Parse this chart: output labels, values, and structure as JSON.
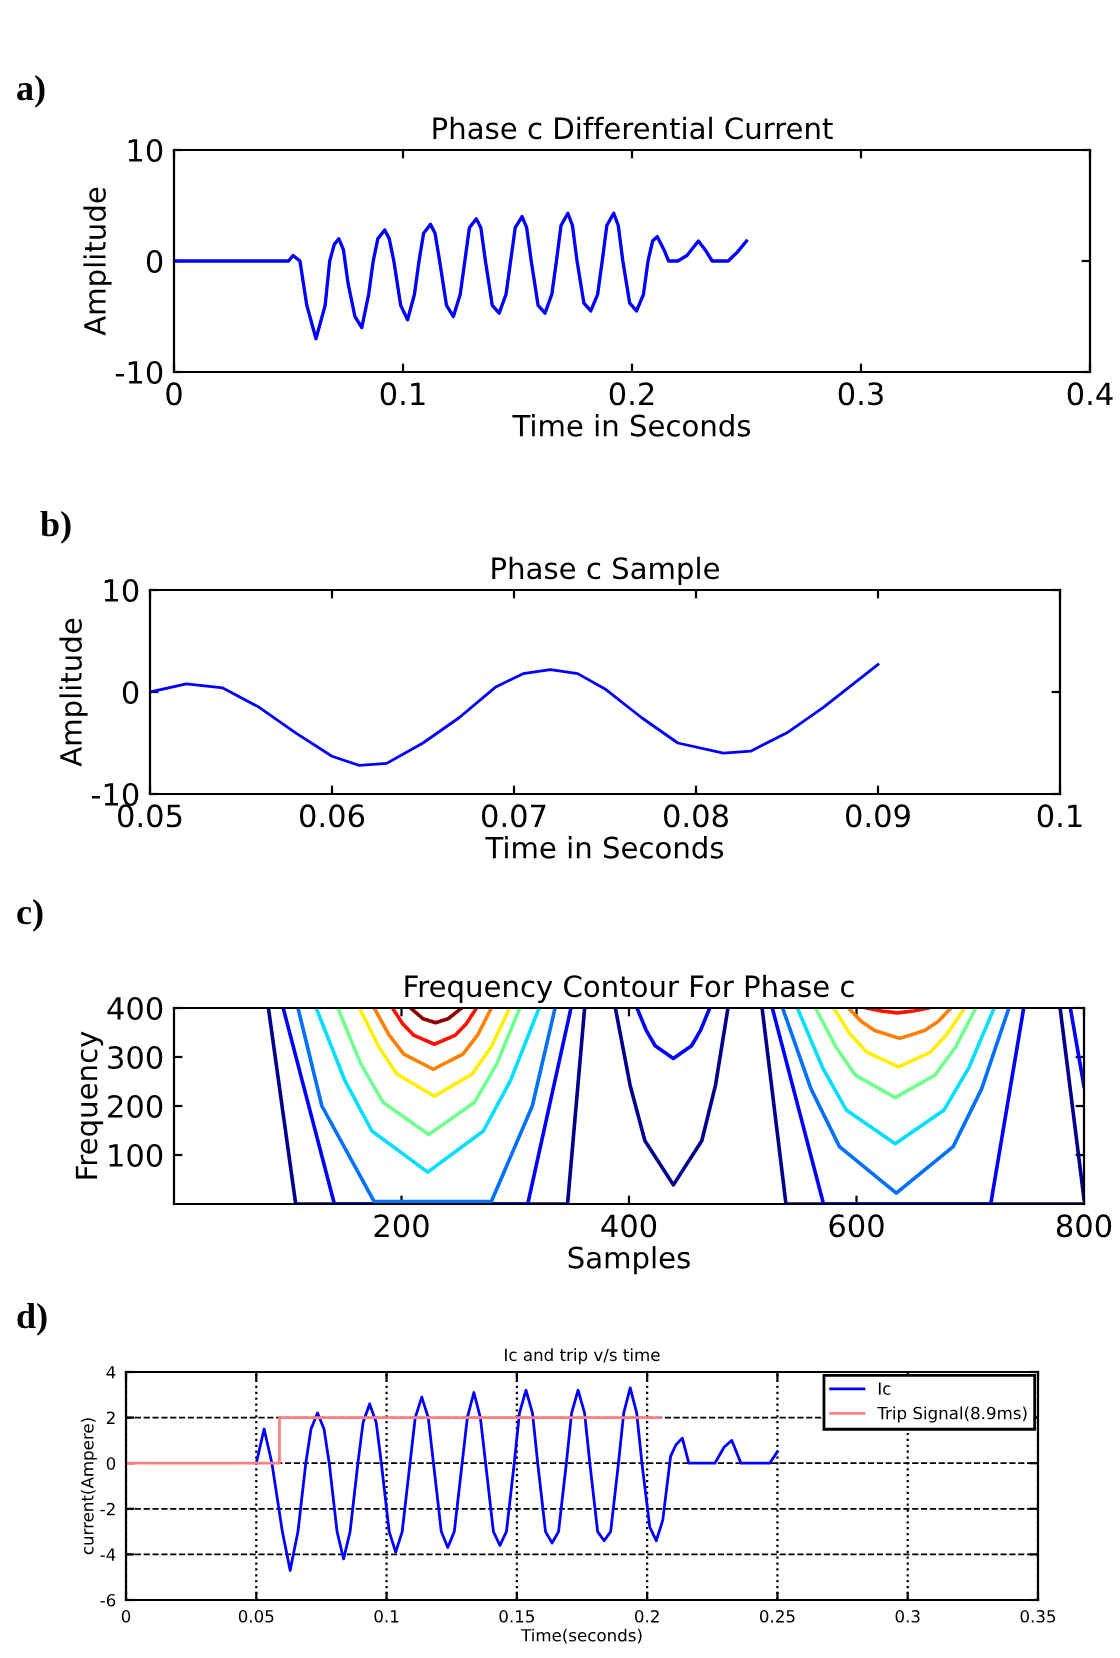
{
  "chart_data": [
    {
      "type": "line",
      "title": "Phase c Differential Current",
      "xlabel": "Time in Seconds",
      "ylabel": "Amplitude",
      "annotations": [
        "a)"
      ],
      "xlim": [
        0,
        0.4
      ],
      "ylim": [
        -10,
        10
      ],
      "xticks": [
        0,
        0.1,
        0.2,
        0.3,
        0.4
      ],
      "yticks": [
        -10,
        0,
        10
      ],
      "grid": false,
      "series": [
        {
          "color": "#0000ff",
          "x": [
            0,
            0.05,
            0.052,
            0.055,
            0.058,
            0.062,
            0.066,
            0.068,
            0.07,
            0.072,
            0.074,
            0.076,
            0.079,
            0.082,
            0.085,
            0.087,
            0.089,
            0.092,
            0.094,
            0.096,
            0.099,
            0.102,
            0.105,
            0.107,
            0.109,
            0.112,
            0.114,
            0.116,
            0.119,
            0.122,
            0.125,
            0.127,
            0.129,
            0.132,
            0.134,
            0.136,
            0.139,
            0.142,
            0.145,
            0.147,
            0.149,
            0.152,
            0.154,
            0.156,
            0.159,
            0.162,
            0.165,
            0.167,
            0.169,
            0.172,
            0.174,
            0.176,
            0.179,
            0.182,
            0.185,
            0.187,
            0.189,
            0.192,
            0.194,
            0.196,
            0.199,
            0.202,
            0.205,
            0.207,
            0.209,
            0.211,
            0.214,
            0.216,
            0.22,
            0.224,
            0.229,
            0.232,
            0.235,
            0.242,
            0.246,
            0.25
          ],
          "values": [
            0,
            0,
            0.5,
            0,
            -4,
            -7,
            -4,
            0,
            1.5,
            2,
            1,
            -2,
            -5,
            -6,
            -3,
            0,
            2,
            2.8,
            2,
            0,
            -4,
            -5.3,
            -3,
            0,
            2.5,
            3.3,
            2.5,
            0,
            -4,
            -5,
            -3,
            0,
            3,
            3.8,
            3,
            0,
            -4,
            -4.7,
            -3,
            0,
            3,
            4,
            3,
            0,
            -4,
            -4.7,
            -3,
            0,
            3.2,
            4.3,
            3.2,
            0,
            -3.8,
            -4.5,
            -3,
            0,
            3.2,
            4.3,
            3.2,
            0,
            -3.8,
            -4.5,
            -3,
            0,
            1.8,
            2.2,
            1,
            0,
            0,
            0.5,
            1.8,
            1,
            0,
            0,
            0.8,
            1.8
          ]
        }
      ]
    },
    {
      "type": "line",
      "title": "Phase c Sample",
      "xlabel": "Time in Seconds",
      "ylabel": "Amplitude",
      "annotations": [
        "b)"
      ],
      "xlim": [
        0.05,
        0.1
      ],
      "ylim": [
        -10,
        10
      ],
      "xticks": [
        0.05,
        0.06,
        0.07,
        0.08,
        0.09,
        0.1
      ],
      "yticks": [
        -10,
        0,
        10
      ],
      "grid": false,
      "series": [
        {
          "color": "#0000ff",
          "x": [
            0.05,
            0.052,
            0.054,
            0.056,
            0.058,
            0.06,
            0.0615,
            0.063,
            0.065,
            0.067,
            0.069,
            0.0705,
            0.072,
            0.0735,
            0.075,
            0.077,
            0.079,
            0.0815,
            0.083,
            0.085,
            0.087,
            0.09
          ],
          "values": [
            0,
            0.8,
            0.4,
            -1.5,
            -4,
            -6.3,
            -7.2,
            -7,
            -5,
            -2.5,
            0.5,
            1.8,
            2.2,
            1.8,
            0.3,
            -2.5,
            -5,
            -6,
            -5.8,
            -4,
            -1.5,
            2.7
          ]
        }
      ]
    },
    {
      "type": "line",
      "title": "Frequency Contour For Phase c",
      "xlabel": "Samples",
      "ylabel": "Frequency",
      "annotations": [
        "c)"
      ],
      "xlim": [
        0,
        800
      ],
      "ylim": [
        0,
        400
      ],
      "xticks": [
        200,
        400,
        600,
        800
      ],
      "yticks": [
        100,
        200,
        300,
        400
      ],
      "grid": false,
      "series": [
        {
          "color": "#00008f",
          "x": [
            83,
            107,
            346,
            361
          ],
          "values": [
            400,
            0,
            0,
            400
          ]
        },
        {
          "color": "#0000ff",
          "x": [
            96,
            141,
            311,
            349
          ],
          "values": [
            400,
            0,
            0,
            400
          ]
        },
        {
          "color": "#0070ff",
          "x": [
            109,
            130,
            176,
            279,
            315,
            335
          ],
          "values": [
            400,
            200,
            5,
            5,
            200,
            400
          ]
        },
        {
          "color": "#00dfff",
          "x": [
            125,
            150,
            174,
            223,
            272,
            296,
            321
          ],
          "values": [
            400,
            253,
            149,
            65,
            149,
            253,
            400
          ]
        },
        {
          "color": "#70ff8f",
          "x": [
            144,
            164,
            184,
            224,
            264,
            284,
            304
          ],
          "values": [
            400,
            287,
            207,
            142,
            207,
            287,
            400
          ]
        },
        {
          "color": "#ffef00",
          "x": [
            163,
            180,
            196,
            229,
            262,
            279,
            295
          ],
          "values": [
            400,
            321,
            265,
            220,
            265,
            321,
            400
          ]
        },
        {
          "color": "#ff8000",
          "x": [
            176,
            189,
            202,
            228,
            254,
            267,
            279
          ],
          "values": [
            400,
            345,
            306,
            275,
            306,
            345,
            400
          ]
        },
        {
          "color": "#ff1000",
          "x": [
            192,
            201,
            211,
            229,
            247,
            257,
            266
          ],
          "values": [
            400,
            368,
            344,
            326,
            344,
            368,
            400
          ]
        },
        {
          "color": "#8f0000",
          "x": [
            208,
            219,
            230,
            241,
            253
          ],
          "values": [
            400,
            378,
            370,
            378,
            400
          ]
        },
        {
          "color": "#00008f",
          "x": [
            388,
            401,
            414,
            439,
            464,
            476,
            487
          ],
          "values": [
            400,
            242,
            129,
            39,
            129,
            242,
            400
          ]
        },
        {
          "color": "#0000ff",
          "x": [
            407,
            415,
            423,
            439,
            455,
            463,
            471
          ],
          "values": [
            400,
            355,
            323,
            297,
            323,
            355,
            400
          ]
        },
        {
          "color": "#00008f",
          "x": [
            517,
            538,
            800
          ],
          "values": [
            400,
            0,
            0
          ]
        },
        {
          "color": "#00008f",
          "x": [
            779,
            800
          ],
          "values": [
            400,
            10
          ]
        },
        {
          "color": "#0000ff",
          "x": [
            788,
            800
          ],
          "values": [
            400,
            240
          ]
        },
        {
          "color": "#0000ff",
          "x": [
            526,
            571,
            718,
            747
          ],
          "values": [
            400,
            0,
            0,
            400
          ]
        },
        {
          "color": "#0070ff",
          "x": [
            535,
            560,
            585,
            635,
            685,
            710,
            734
          ],
          "values": [
            400,
            235,
            117,
            22,
            117,
            235,
            400
          ]
        },
        {
          "color": "#00dfff",
          "x": [
            548,
            570,
            591,
            634,
            677,
            699,
            721
          ],
          "values": [
            400,
            279,
            192,
            123,
            192,
            279,
            400
          ]
        },
        {
          "color": "#70ff8f",
          "x": [
            564,
            582,
            599,
            634,
            669,
            687,
            705
          ],
          "values": [
            400,
            320,
            263,
            217,
            263,
            320,
            400
          ]
        },
        {
          "color": "#ffef00",
          "x": [
            580,
            594,
            609,
            637,
            665,
            680,
            695
          ],
          "values": [
            400,
            348,
            310,
            280,
            310,
            348,
            400
          ]
        },
        {
          "color": "#ff8000",
          "x": [
            593,
            604,
            616,
            638,
            660,
            672,
            683
          ],
          "values": [
            400,
            373,
            354,
            338,
            354,
            373,
            400
          ]
        },
        {
          "color": "#ff1000",
          "x": [
            609,
            622,
            636,
            650,
            663
          ],
          "values": [
            400,
            394,
            390,
            394,
            400
          ]
        }
      ]
    },
    {
      "type": "line",
      "title": "Ic and trip v/s time",
      "xlabel": "Time(seconds)",
      "ylabel": "current(Ampere)",
      "annotations": [
        "d)"
      ],
      "xlim": [
        0,
        0.35
      ],
      "ylim": [
        -6,
        4
      ],
      "xticks": [
        0,
        0.05,
        0.1,
        0.15,
        0.2,
        0.25,
        0.3,
        0.35
      ],
      "yticks": [
        -6,
        -4,
        -2,
        0,
        2,
        4
      ],
      "grid": true,
      "legend": "top right",
      "series": [
        {
          "name": "Ic",
          "color": "#0000ff",
          "x": [
            0.05,
            0.053,
            0.056,
            0.06,
            0.063,
            0.066,
            0.069,
            0.071,
            0.0735,
            0.076,
            0.078,
            0.081,
            0.0835,
            0.086,
            0.089,
            0.091,
            0.0935,
            0.096,
            0.098,
            0.101,
            0.1035,
            0.106,
            0.109,
            0.111,
            0.1135,
            0.116,
            0.118,
            0.121,
            0.1235,
            0.126,
            0.129,
            0.131,
            0.1335,
            0.136,
            0.138,
            0.141,
            0.1435,
            0.146,
            0.149,
            0.151,
            0.1535,
            0.156,
            0.158,
            0.161,
            0.1635,
            0.166,
            0.169,
            0.171,
            0.1735,
            0.176,
            0.178,
            0.181,
            0.1835,
            0.186,
            0.189,
            0.191,
            0.1935,
            0.196,
            0.198,
            0.201,
            0.2035,
            0.206,
            0.209,
            0.211,
            0.2135,
            0.216,
            0.226,
            0.2295,
            0.2325,
            0.236,
            0.247,
            0.25
          ],
          "values": [
            0,
            1.5,
            0,
            -3,
            -4.7,
            -3,
            0,
            1.5,
            2.2,
            1.5,
            0,
            -3,
            -4.2,
            -3,
            0,
            1.8,
            2.6,
            1.8,
            0,
            -3,
            -3.9,
            -3,
            0,
            2,
            2.9,
            2,
            0,
            -3,
            -3.7,
            -3,
            0,
            2,
            3.1,
            2,
            0,
            -3,
            -3.6,
            -3,
            0,
            2.2,
            3.2,
            2.2,
            0,
            -3,
            -3.5,
            -3,
            0,
            2.2,
            3.2,
            2.2,
            0,
            -3,
            -3.4,
            -3,
            0,
            2.2,
            3.3,
            2.2,
            0,
            -2.8,
            -3.4,
            -2.5,
            0.3,
            0.8,
            1.1,
            0,
            0,
            0.7,
            1.0,
            0,
            0,
            0.5
          ]
        },
        {
          "name": "Trip Signal(8.9ms)",
          "color": "#ff8080",
          "x": [
            0,
            0.0589,
            0.0589,
            0.205
          ],
          "values": [
            0,
            0,
            2,
            2
          ]
        }
      ]
    }
  ]
}
